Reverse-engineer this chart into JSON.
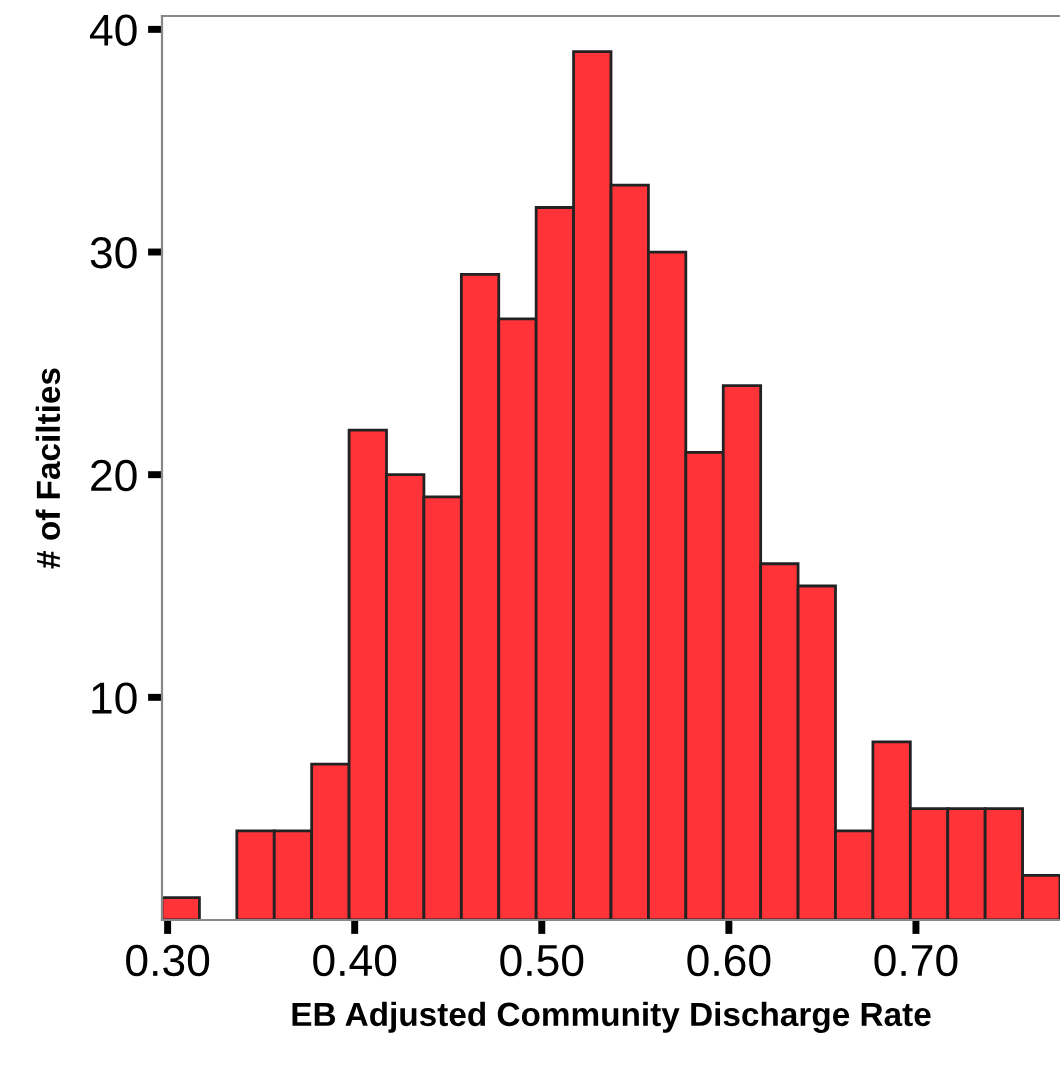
{
  "chart_data": {
    "type": "histogram",
    "xlabel": "EB Adjusted Community Discharge Rate",
    "ylabel": "# of Facilties",
    "bins": [
      0.297,
      0.317,
      0.337,
      0.357,
      0.377,
      0.397,
      0.417,
      0.437,
      0.457,
      0.477,
      0.497,
      0.517,
      0.537,
      0.557,
      0.577,
      0.597,
      0.617,
      0.637,
      0.657,
      0.677,
      0.697,
      0.717,
      0.737,
      0.757,
      0.777
    ],
    "values": [
      1,
      0,
      4,
      4,
      7,
      22,
      20,
      19,
      29,
      27,
      32,
      39,
      33,
      30,
      21,
      24,
      16,
      15,
      4,
      8,
      5,
      5,
      5,
      2
    ],
    "color": "#ff3338",
    "xlim": [
      0.297,
      0.777
    ],
    "xticks": [
      {
        "value": 0.3,
        "label": "0.30"
      },
      {
        "value": 0.4,
        "label": "0.40"
      },
      {
        "value": 0.5,
        "label": "0.50"
      },
      {
        "value": 0.6,
        "label": "0.60"
      },
      {
        "value": 0.7,
        "label": "0.70"
      }
    ],
    "ylim": [
      0,
      40.6
    ],
    "yticks": [
      10,
      20,
      30,
      40
    ],
    "grid": false
  }
}
